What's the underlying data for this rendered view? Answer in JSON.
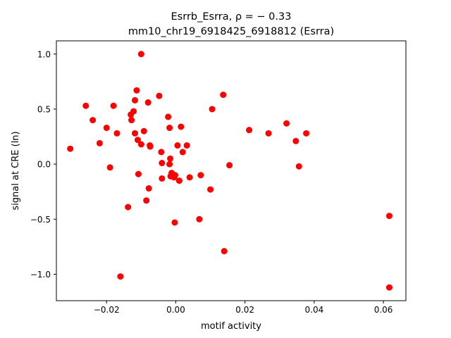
{
  "chart_data": {
    "type": "scatter",
    "title_line1": "Esrrb_Esrra, ρ = − 0.33",
    "title_line2": "mm10_chr19_6918425_6918812 (Esrra)",
    "xlabel": "motif activity",
    "ylabel": "signal at CRE (ln)",
    "xlim": [
      -0.0345,
      0.0665
    ],
    "ylim": [
      -1.24,
      1.12
    ],
    "xticks": [
      -0.02,
      0.0,
      0.02,
      0.04,
      0.06
    ],
    "xtick_labels": [
      "−0.02",
      "0.00",
      "0.02",
      "0.04",
      "0.06"
    ],
    "yticks": [
      -1.0,
      -0.5,
      0.0,
      0.5,
      1.0
    ],
    "ytick_labels": [
      "−1.0",
      "−0.5",
      "0.0",
      "0.5",
      "1.0"
    ],
    "grid": false,
    "legend": "none",
    "marker_color": "#ff0000",
    "points": [
      [
        -0.0305,
        0.14
      ],
      [
        -0.026,
        0.53
      ],
      [
        -0.024,
        0.4
      ],
      [
        -0.022,
        0.19
      ],
      [
        -0.02,
        0.33
      ],
      [
        -0.019,
        -0.03
      ],
      [
        -0.018,
        0.53
      ],
      [
        -0.017,
        0.28
      ],
      [
        -0.016,
        -1.02
      ],
      [
        -0.0138,
        -0.39
      ],
      [
        -0.013,
        0.45
      ],
      [
        -0.0128,
        0.4
      ],
      [
        -0.0122,
        0.48
      ],
      [
        -0.0118,
        0.58
      ],
      [
        -0.0118,
        0.28
      ],
      [
        -0.0113,
        0.67
      ],
      [
        -0.011,
        0.22
      ],
      [
        -0.0108,
        -0.09
      ],
      [
        -0.01,
        1.0
      ],
      [
        -0.01,
        0.18
      ],
      [
        -0.0092,
        0.3
      ],
      [
        -0.0085,
        -0.33
      ],
      [
        -0.008,
        0.56
      ],
      [
        -0.0078,
        -0.22
      ],
      [
        -0.0075,
        0.17
      ],
      [
        -0.0074,
        0.16
      ],
      [
        -0.0048,
        0.62
      ],
      [
        -0.0042,
        0.11
      ],
      [
        -0.004,
        0.01
      ],
      [
        -0.004,
        -0.13
      ],
      [
        -0.0022,
        0.43
      ],
      [
        -0.0018,
        0.33
      ],
      [
        -0.0018,
        0.0
      ],
      [
        -0.0016,
        0.05
      ],
      [
        -0.0015,
        -0.11
      ],
      [
        -0.0012,
        -0.08
      ],
      [
        -0.0005,
        -0.12
      ],
      [
        -0.0003,
        -0.53
      ],
      [
        -0.0002,
        -0.1
      ],
      [
        0.0005,
        0.17
      ],
      [
        0.001,
        -0.15
      ],
      [
        0.0015,
        0.34
      ],
      [
        0.002,
        0.11
      ],
      [
        0.0032,
        0.17
      ],
      [
        0.004,
        -0.12
      ],
      [
        0.0068,
        -0.5
      ],
      [
        0.0072,
        -0.1
      ],
      [
        0.01,
        -0.23
      ],
      [
        0.0105,
        0.5
      ],
      [
        0.0137,
        0.63
      ],
      [
        0.014,
        -0.79
      ],
      [
        0.0155,
        -0.01
      ],
      [
        0.0212,
        0.31
      ],
      [
        0.0268,
        0.28
      ],
      [
        0.032,
        0.37
      ],
      [
        0.0347,
        0.21
      ],
      [
        0.0356,
        -0.02
      ],
      [
        0.0377,
        0.28
      ],
      [
        0.0617,
        -0.47
      ],
      [
        0.0617,
        -1.12
      ]
    ]
  }
}
